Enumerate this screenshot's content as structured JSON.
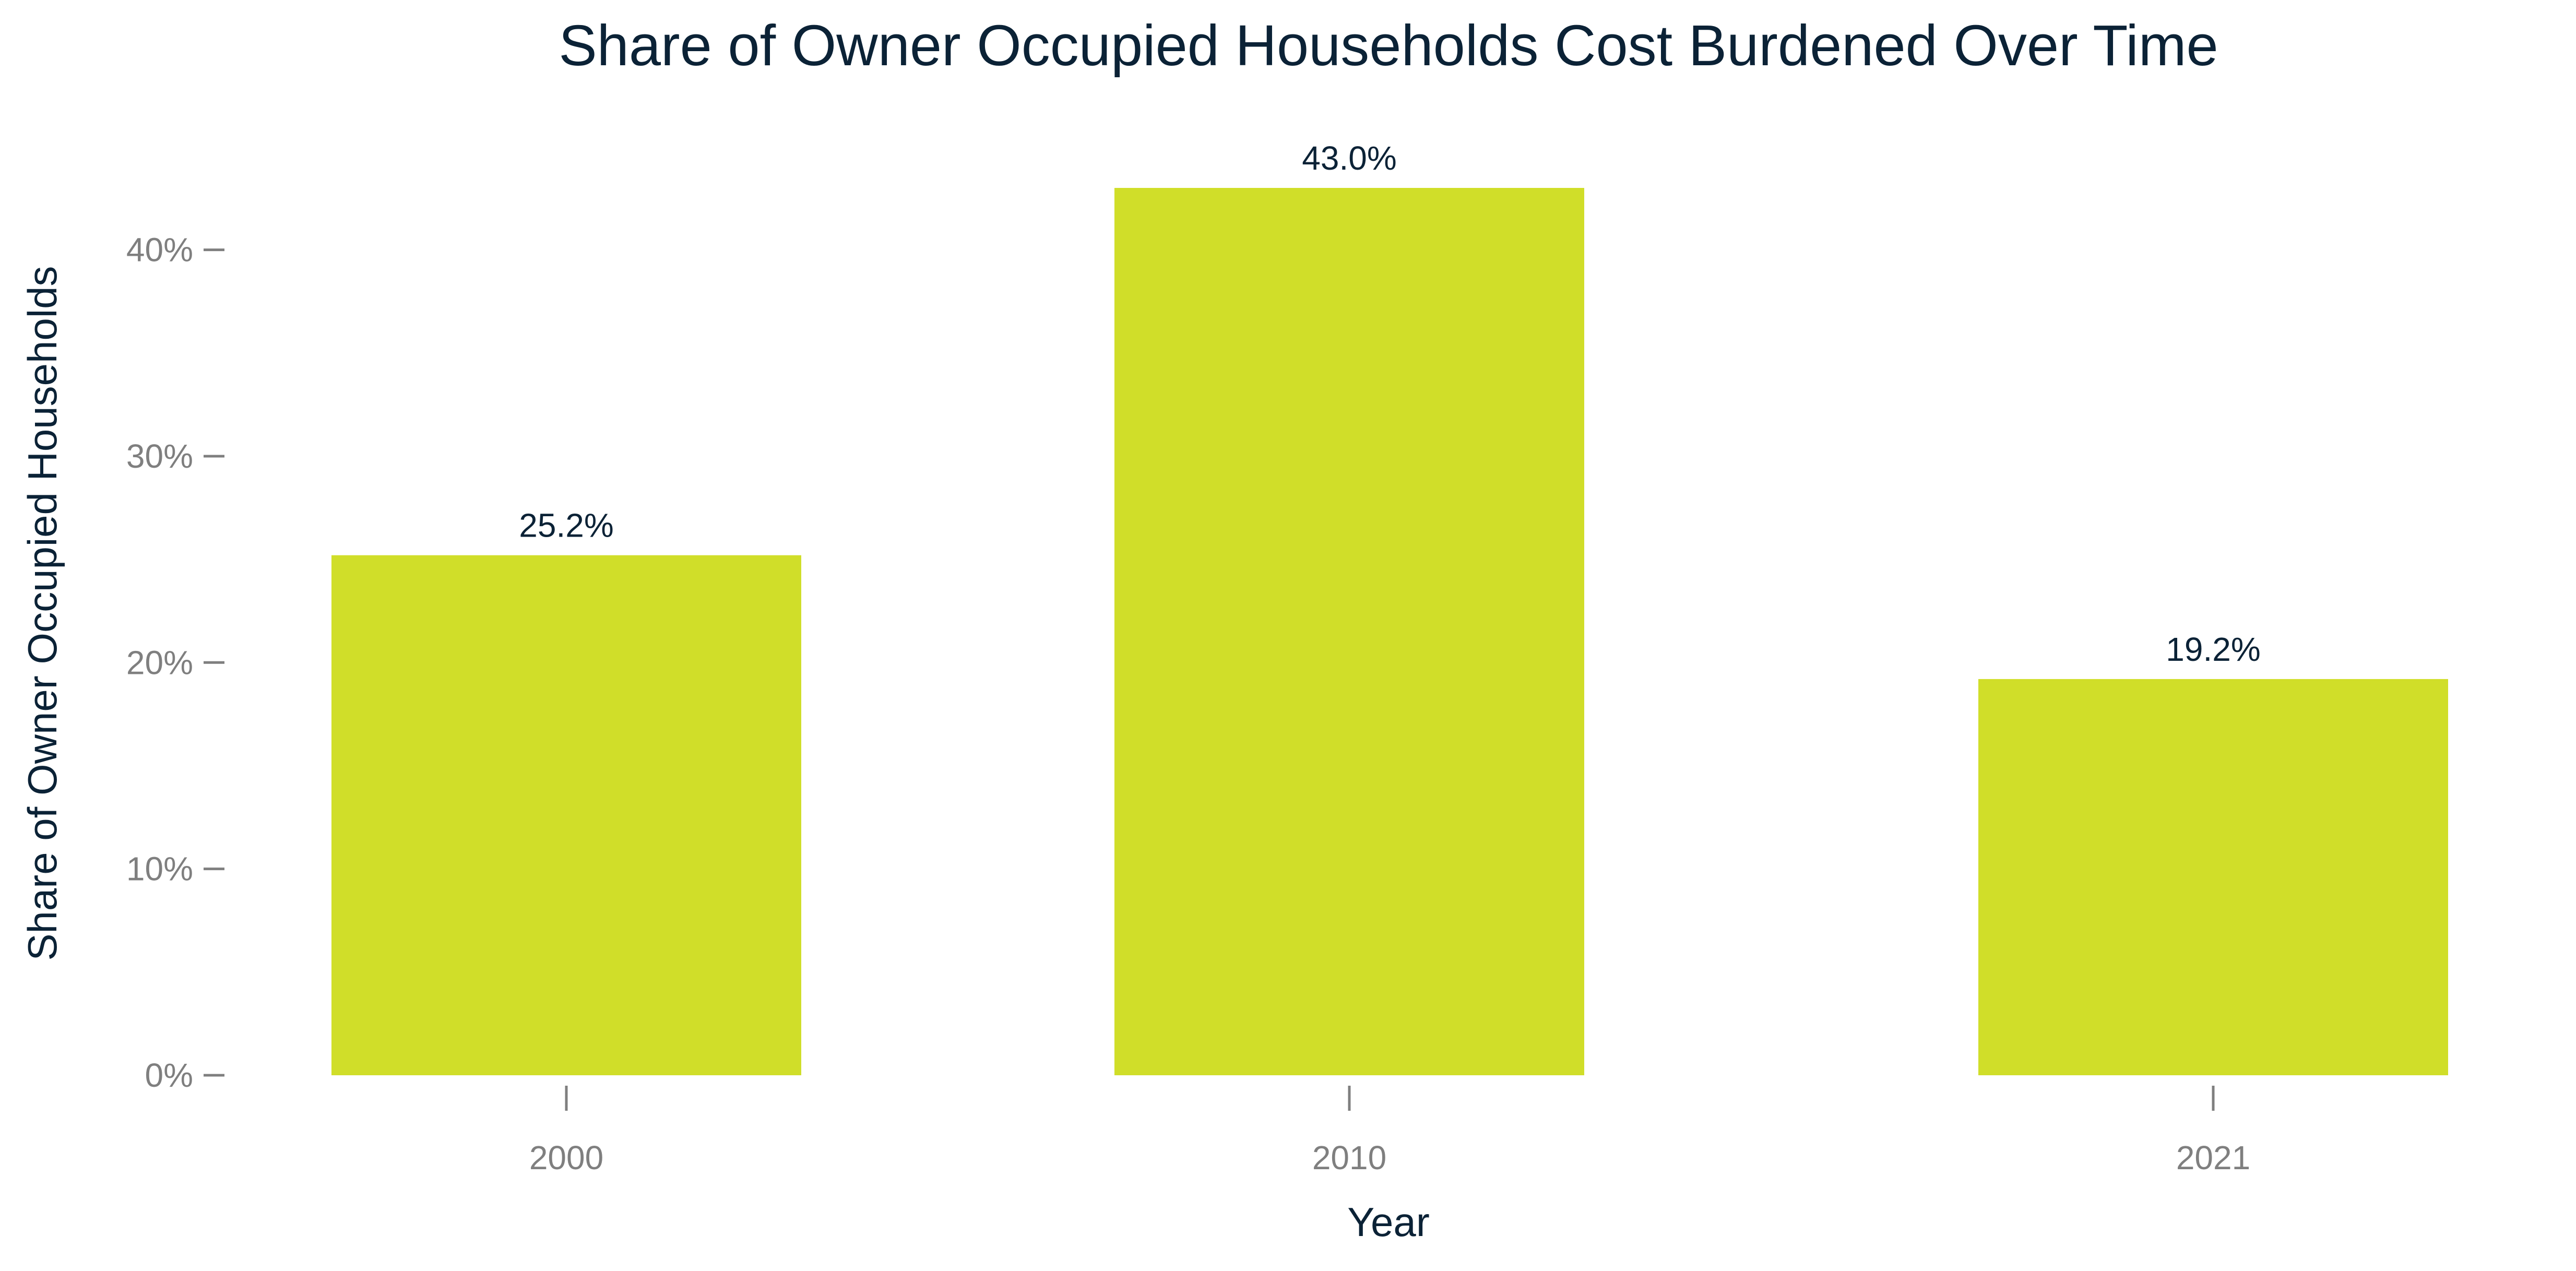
{
  "colors": {
    "bar": "#D0DE29",
    "title_text": "#0B2236",
    "axis_text": "#7F7F7F",
    "tick_line": "#7F7F7F",
    "background": "#FFFFFF"
  },
  "chart_data": {
    "type": "bar",
    "title": "Share of Owner Occupied Households Cost Burdened Over Time",
    "xlabel": "Year",
    "ylabel": "Share of Owner Occupied Households",
    "categories": [
      "2000",
      "2010",
      "2021"
    ],
    "values": [
      25.2,
      43.0,
      19.2
    ],
    "data_labels": [
      "25.2%",
      "43.0%",
      "19.2%"
    ],
    "ylim": [
      0,
      43
    ],
    "y_ticks": [
      0,
      10,
      20,
      30,
      40
    ],
    "y_tick_labels": [
      "0%",
      "10%",
      "20%",
      "30%",
      "40%"
    ],
    "grid": false,
    "legend": "none"
  }
}
